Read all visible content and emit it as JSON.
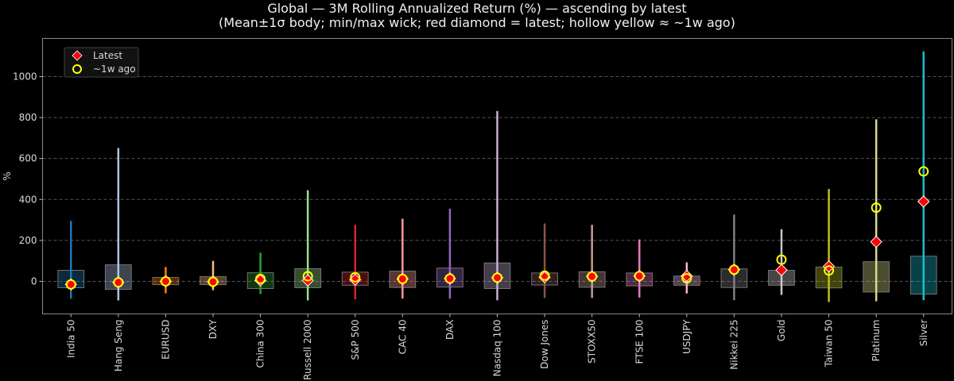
{
  "chart_data": {
    "type": "candlestick-range",
    "title_line1": "Global — 3M Rolling Annualized Return (%) — ascending by latest",
    "title_line2": "(Mean±1σ body; min/max wick; red diamond = latest; hollow yellow ≈ ~1w ago)",
    "xlabel": "",
    "ylabel": "%",
    "ylim": [
      -159,
      1186
    ],
    "yticks": [
      0,
      200,
      400,
      600,
      800,
      1000
    ],
    "grid": true,
    "legend": {
      "placement": "top-left",
      "entries": [
        "Latest",
        "~1w ago"
      ]
    },
    "series": [
      {
        "name": "India 50",
        "color": "#1f77b4",
        "body_hi": 54,
        "body_lo": -31,
        "max": 295,
        "min": -85,
        "latest": -15,
        "week_ago": -15
      },
      {
        "name": "Hang Seng",
        "color": "#aec7e8",
        "body_hi": 81,
        "body_lo": -39,
        "max": 651,
        "min": -93,
        "latest": -5,
        "week_ago": -5
      },
      {
        "name": "EURUSD",
        "color": "#ff7f0e",
        "body_hi": 19,
        "body_lo": -16,
        "max": 70,
        "min": -58,
        "latest": 0,
        "week_ago": 0
      },
      {
        "name": "DXY",
        "color": "#ffbb78",
        "body_hi": 23,
        "body_lo": -16,
        "max": 100,
        "min": -43,
        "latest": -2,
        "week_ago": -2
      },
      {
        "name": "China 300",
        "color": "#2ca02c",
        "body_hi": 42,
        "body_lo": -35,
        "max": 140,
        "min": -62,
        "latest": 5,
        "week_ago": 12
      },
      {
        "name": "Russell 2000",
        "color": "#98df8a",
        "body_hi": 62,
        "body_lo": -31,
        "max": 445,
        "min": -93,
        "latest": 5,
        "week_ago": 25
      },
      {
        "name": "S&P 500",
        "color": "#d62728",
        "body_hi": 45,
        "body_lo": -19,
        "max": 276,
        "min": -88,
        "latest": 8,
        "week_ago": 20
      },
      {
        "name": "CAC 40",
        "color": "#ff9896",
        "body_hi": 50,
        "body_lo": -30,
        "max": 306,
        "min": -84,
        "latest": 12,
        "week_ago": 12
      },
      {
        "name": "DAX",
        "color": "#9467bd",
        "body_hi": 65,
        "body_lo": -28,
        "max": 355,
        "min": -85,
        "latest": 14,
        "week_ago": 14
      },
      {
        "name": "Nasdaq 100",
        "color": "#c5b0d5",
        "body_hi": 90,
        "body_lo": -35,
        "max": 832,
        "min": -92,
        "latest": 18,
        "week_ago": 18
      },
      {
        "name": "Dow Jones",
        "color": "#8c564b",
        "body_hi": 41,
        "body_lo": -18,
        "max": 283,
        "min": -81,
        "latest": 20,
        "week_ago": 28
      },
      {
        "name": "STOXX50",
        "color": "#c49c94",
        "body_hi": 47,
        "body_lo": -29,
        "max": 276,
        "min": -81,
        "latest": 24,
        "week_ago": 24
      },
      {
        "name": "FTSE 100",
        "color": "#e377c2",
        "body_hi": 41,
        "body_lo": -22,
        "max": 205,
        "min": -79,
        "latest": 26,
        "week_ago": 26
      },
      {
        "name": "USDJPY",
        "color": "#f7b6d2",
        "body_hi": 26,
        "body_lo": -19,
        "max": 93,
        "min": -59,
        "latest": 26,
        "week_ago": 15
      },
      {
        "name": "Nikkei 225",
        "color": "#7f7f7f",
        "body_hi": 61,
        "body_lo": -30,
        "max": 326,
        "min": -92,
        "latest": 57,
        "week_ago": 57
      },
      {
        "name": "Gold",
        "color": "#c7c7c7",
        "body_hi": 54,
        "body_lo": -19,
        "max": 255,
        "min": -66,
        "latest": 55,
        "week_ago": 106
      },
      {
        "name": "Taiwan 50",
        "color": "#bcbd22",
        "body_hi": 70,
        "body_lo": -32,
        "max": 451,
        "min": -101,
        "latest": 73,
        "week_ago": 53
      },
      {
        "name": "Platinum",
        "color": "#dbdb8d",
        "body_hi": 96,
        "body_lo": -52,
        "max": 791,
        "min": -97,
        "latest": 193,
        "week_ago": 360
      },
      {
        "name": "Silver",
        "color": "#17becf",
        "body_hi": 123,
        "body_lo": -62,
        "max": 1123,
        "min": -92,
        "latest": 390,
        "week_ago": 537
      }
    ]
  }
}
